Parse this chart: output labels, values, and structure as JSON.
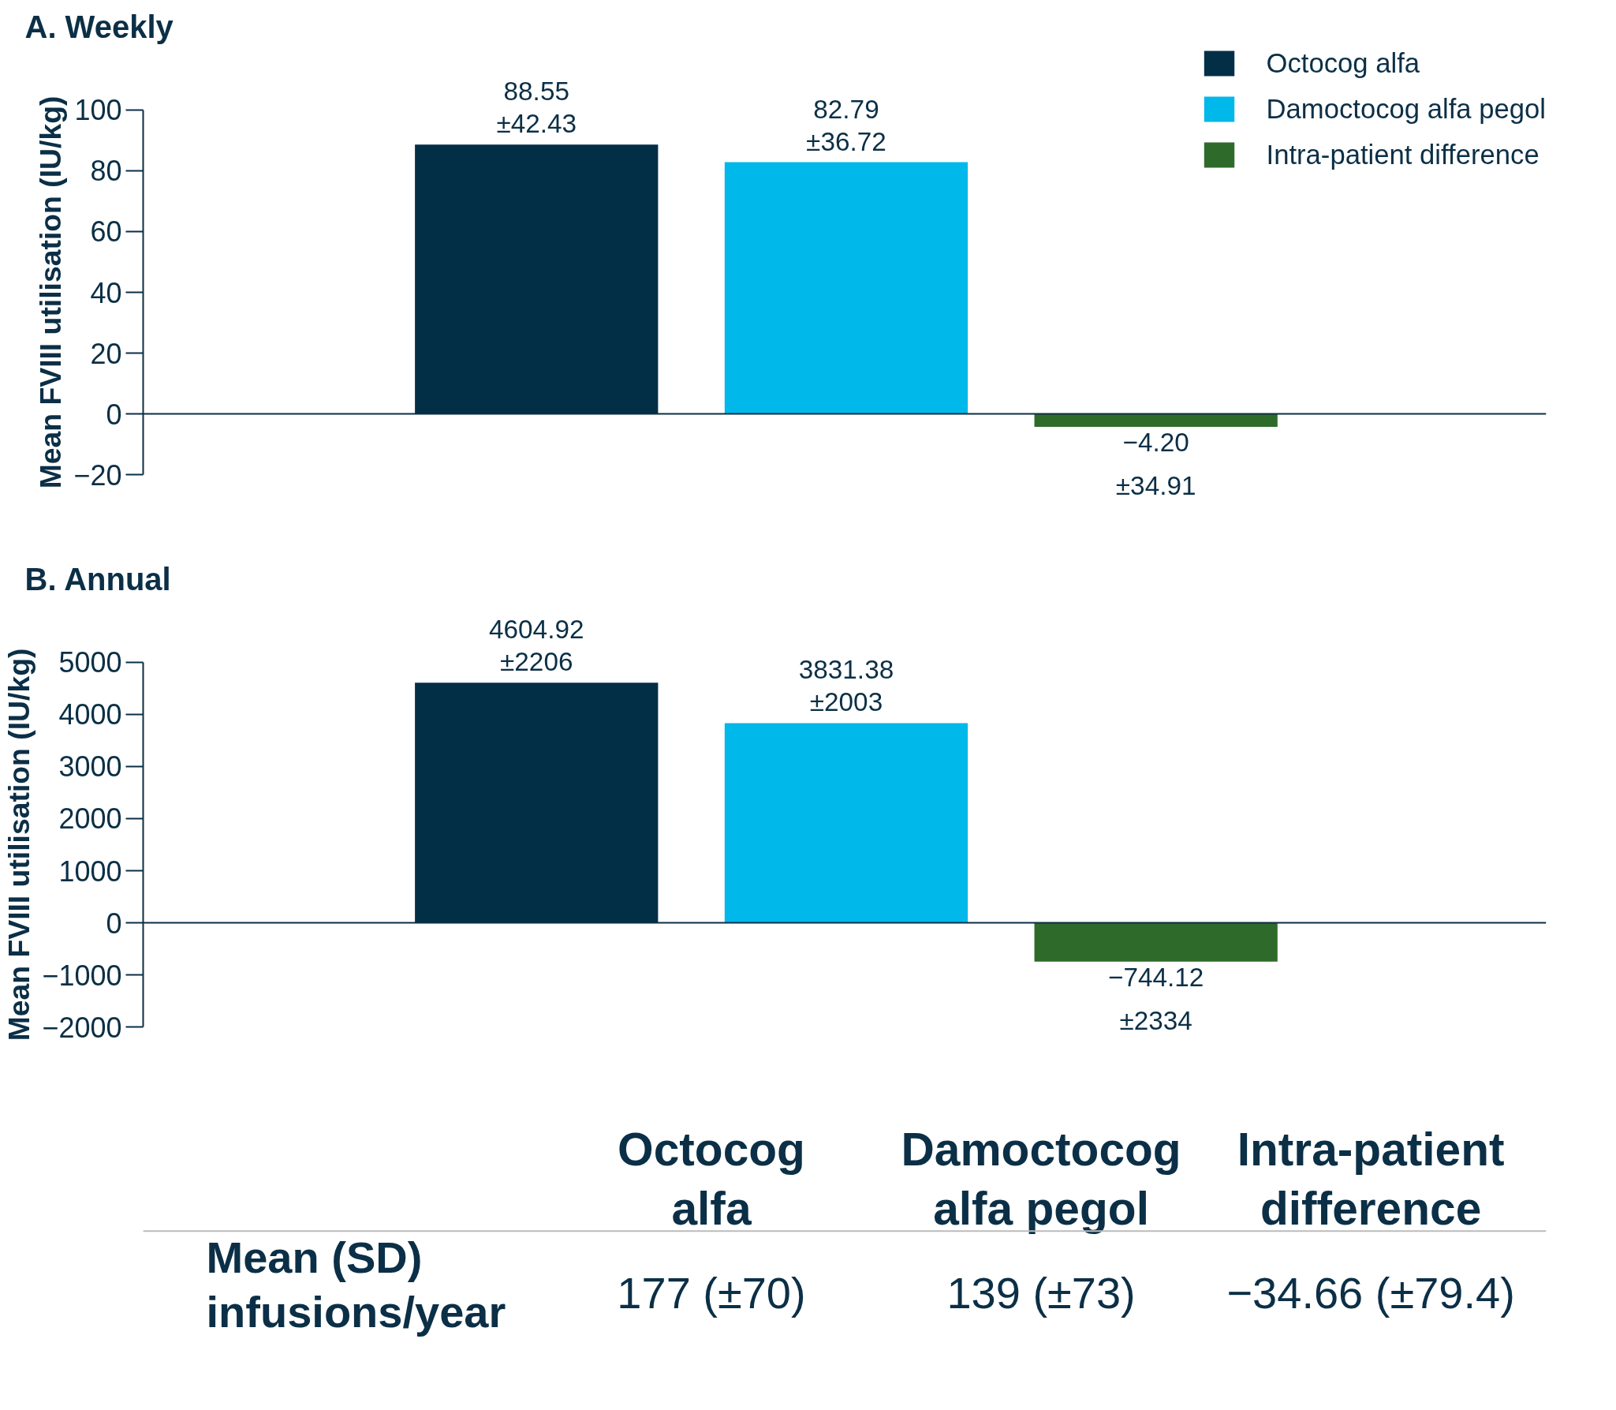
{
  "chart_data": [
    {
      "type": "bar",
      "title": "A.  Weekly",
      "ylabel": "Mean FVIII utilisation (IU/kg)",
      "categories": [
        null,
        null,
        null
      ],
      "ylim": [
        -20,
        100
      ],
      "yticks": [
        -20,
        0,
        20,
        40,
        60,
        80,
        100
      ],
      "grid": false,
      "legend": "top right",
      "tick_labels": "y",
      "series": [
        {
          "name": "Octocog alfa",
          "color": "#022f46",
          "values": [
            88.55,
            null,
            null
          ],
          "value_labels": [
            "88.55\n±42.43",
            null,
            null
          ]
        },
        {
          "name": "Damoctocog alfa pegol",
          "color": "#00b8ea",
          "values": [
            null,
            82.79,
            null
          ],
          "value_labels": [
            null,
            "82.79\n±36.72",
            null
          ]
        },
        {
          "name": "Intra-patient difference",
          "color": "#2e6b2a",
          "values": [
            null,
            null,
            -4.2
          ],
          "value_labels": [
            null,
            null,
            "−4.20\n±34.91"
          ]
        }
      ]
    },
    {
      "type": "bar",
      "title": "B.  Annual",
      "ylabel": "Mean FVIII utilisation (IU/kg)",
      "categories": [
        null,
        null,
        null
      ],
      "ylim": [
        -2000,
        5000
      ],
      "yticks": [
        -2000,
        -1000,
        0,
        1000,
        2000,
        3000,
        4000,
        5000
      ],
      "grid": false,
      "tick_labels": "y",
      "series": [
        {
          "color": "#022f46",
          "values": [
            4604.92,
            null,
            null
          ],
          "value_labels": [
            "4604.92\n±2206",
            null,
            null
          ]
        },
        {
          "color": "#00b8ea",
          "values": [
            null,
            3831.38,
            null
          ],
          "value_labels": [
            null,
            "3831.38\n±2003",
            null
          ]
        },
        {
          "color": "#2e6b2a",
          "values": [
            null,
            null,
            -744.12
          ],
          "value_labels": [
            null,
            null,
            "−744.12\n±2334"
          ]
        }
      ]
    },
    {
      "type": "other",
      "annotations": [
        "Octocog\nalfa",
        "Damoctocog\nalfa pegol",
        "Intra-patient\ndifference",
        "Mean (SD)\ninfusions/year",
        "177 (±70)",
        "139 (±73)",
        "−34.66 (±79.4)"
      ]
    }
  ]
}
